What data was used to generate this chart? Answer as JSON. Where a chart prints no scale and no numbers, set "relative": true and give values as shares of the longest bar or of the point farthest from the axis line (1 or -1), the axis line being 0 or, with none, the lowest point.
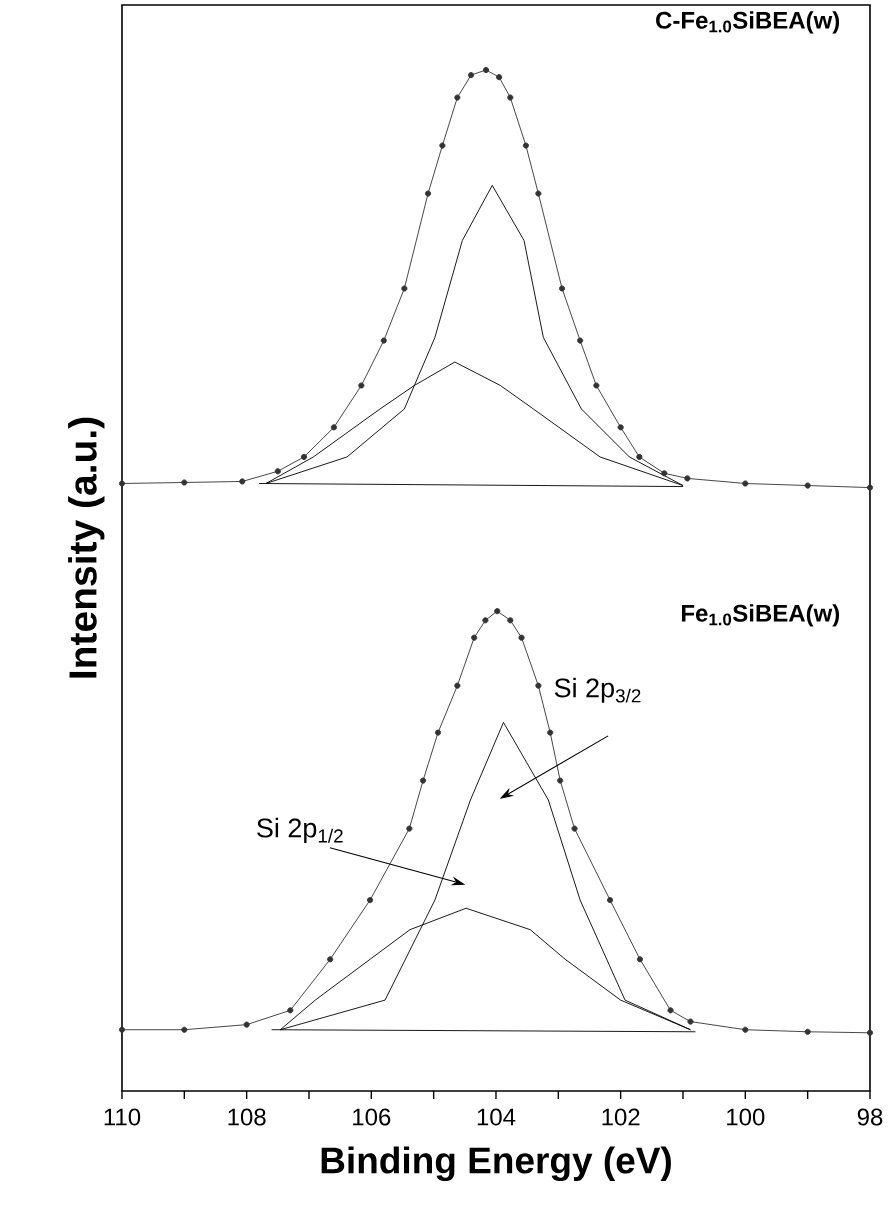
{
  "chart_data": {
    "type": "line",
    "relative": true,
    "xlabel": "Binding Energy (eV)",
    "ylabel": "Intensity (a.u.)",
    "xlim": [
      110,
      98
    ],
    "xticks": [
      110,
      {
        "value": 109,
        "label": null
      },
      108,
      {
        "value": 107,
        "label": null
      },
      106,
      {
        "value": 105,
        "label": null
      },
      104,
      {
        "value": 103,
        "label": null
      },
      102,
      {
        "value": 101,
        "label": null
      },
      100,
      {
        "value": 99,
        "label": null
      },
      98
    ],
    "line_style": "solid",
    "series": [
      {
        "color": "#333333",
        "marker": "circle",
        "x": [
          110,
          109,
          108.07,
          107.5,
          107.08,
          106.6,
          106.16,
          105.8,
          105.47,
          105.09,
          104.86,
          104.62,
          104.4,
          104.16,
          103.95,
          103.77,
          103.52,
          103.32,
          102.94,
          102.65,
          102.39,
          102.0,
          101.7,
          101.3,
          100.93,
          100,
          99,
          98
        ],
        "values": [
          0.595,
          0.596,
          0.597,
          0.607,
          0.621,
          0.65,
          0.691,
          0.735,
          0.786,
          0.879,
          0.926,
          0.973,
          0.995,
          1.0,
          0.993,
          0.973,
          0.926,
          0.879,
          0.786,
          0.735,
          0.691,
          0.65,
          0.621,
          0.605,
          0.6,
          0.595,
          0.593,
          0.591
        ]
      },
      {
        "color": "#000000",
        "x": [
          107.69,
          106.39,
          105.47,
          104.98,
          104.54,
          104.06,
          103.55,
          103.24,
          102.63,
          101.86,
          101.0
        ],
        "values": [
          0.595,
          0.621,
          0.668,
          0.738,
          0.833,
          0.887,
          0.833,
          0.738,
          0.668,
          0.621,
          0.593
        ]
      },
      {
        "color": "#000000",
        "x": [
          107.69,
          106.93,
          105.86,
          105.31,
          104.66,
          103.93,
          103.4,
          102.33,
          101.0
        ],
        "values": [
          0.595,
          0.621,
          0.668,
          0.691,
          0.714,
          0.691,
          0.668,
          0.621,
          0.593
        ]
      },
      {
        "color": "#000000",
        "x": [
          107.8,
          101.0
        ],
        "values": [
          0.595,
          0.592
        ]
      },
      {
        "color": "#333333",
        "marker": "circle",
        "x": [
          110,
          109,
          108.0,
          107.3,
          106.66,
          106.02,
          105.39,
          105.17,
          104.93,
          104.62,
          104.35,
          104.17,
          103.98,
          103.77,
          103.59,
          103.32,
          103.13,
          102.97,
          102.74,
          102.17,
          101.69,
          101.2,
          100.88,
          100,
          99,
          98
        ],
        "values": [
          0.06,
          0.06,
          0.065,
          0.079,
          0.129,
          0.187,
          0.257,
          0.304,
          0.351,
          0.397,
          0.444,
          0.461,
          0.47,
          0.461,
          0.444,
          0.397,
          0.351,
          0.304,
          0.257,
          0.187,
          0.129,
          0.079,
          0.068,
          0.06,
          0.058,
          0.057
        ]
      },
      {
        "color": "#000000",
        "x": [
          107.46,
          105.78,
          104.98,
          104.41,
          103.88,
          103.16,
          102.65,
          101.93,
          100.88
        ],
        "values": [
          0.06,
          0.089,
          0.187,
          0.285,
          0.361,
          0.285,
          0.187,
          0.089,
          0.06
        ]
      },
      {
        "color": "#000000",
        "x": [
          107.46,
          106.9,
          106.02,
          105.38,
          104.48,
          103.45,
          102.89,
          102.0,
          100.88
        ],
        "values": [
          0.06,
          0.089,
          0.129,
          0.158,
          0.179,
          0.158,
          0.129,
          0.089,
          0.06
        ]
      },
      {
        "color": "#000000",
        "x": [
          107.6,
          100.8
        ],
        "values": [
          0.06,
          0.058
        ]
      }
    ],
    "annotations": [
      "**C-Fe$_{1.0}$SiBEA(w)**",
      "**Fe$_{1.0}$SiBEA(w)**",
      "Si 2p$_{3/2}$",
      "Si 2p$_{1/2}$"
    ]
  }
}
